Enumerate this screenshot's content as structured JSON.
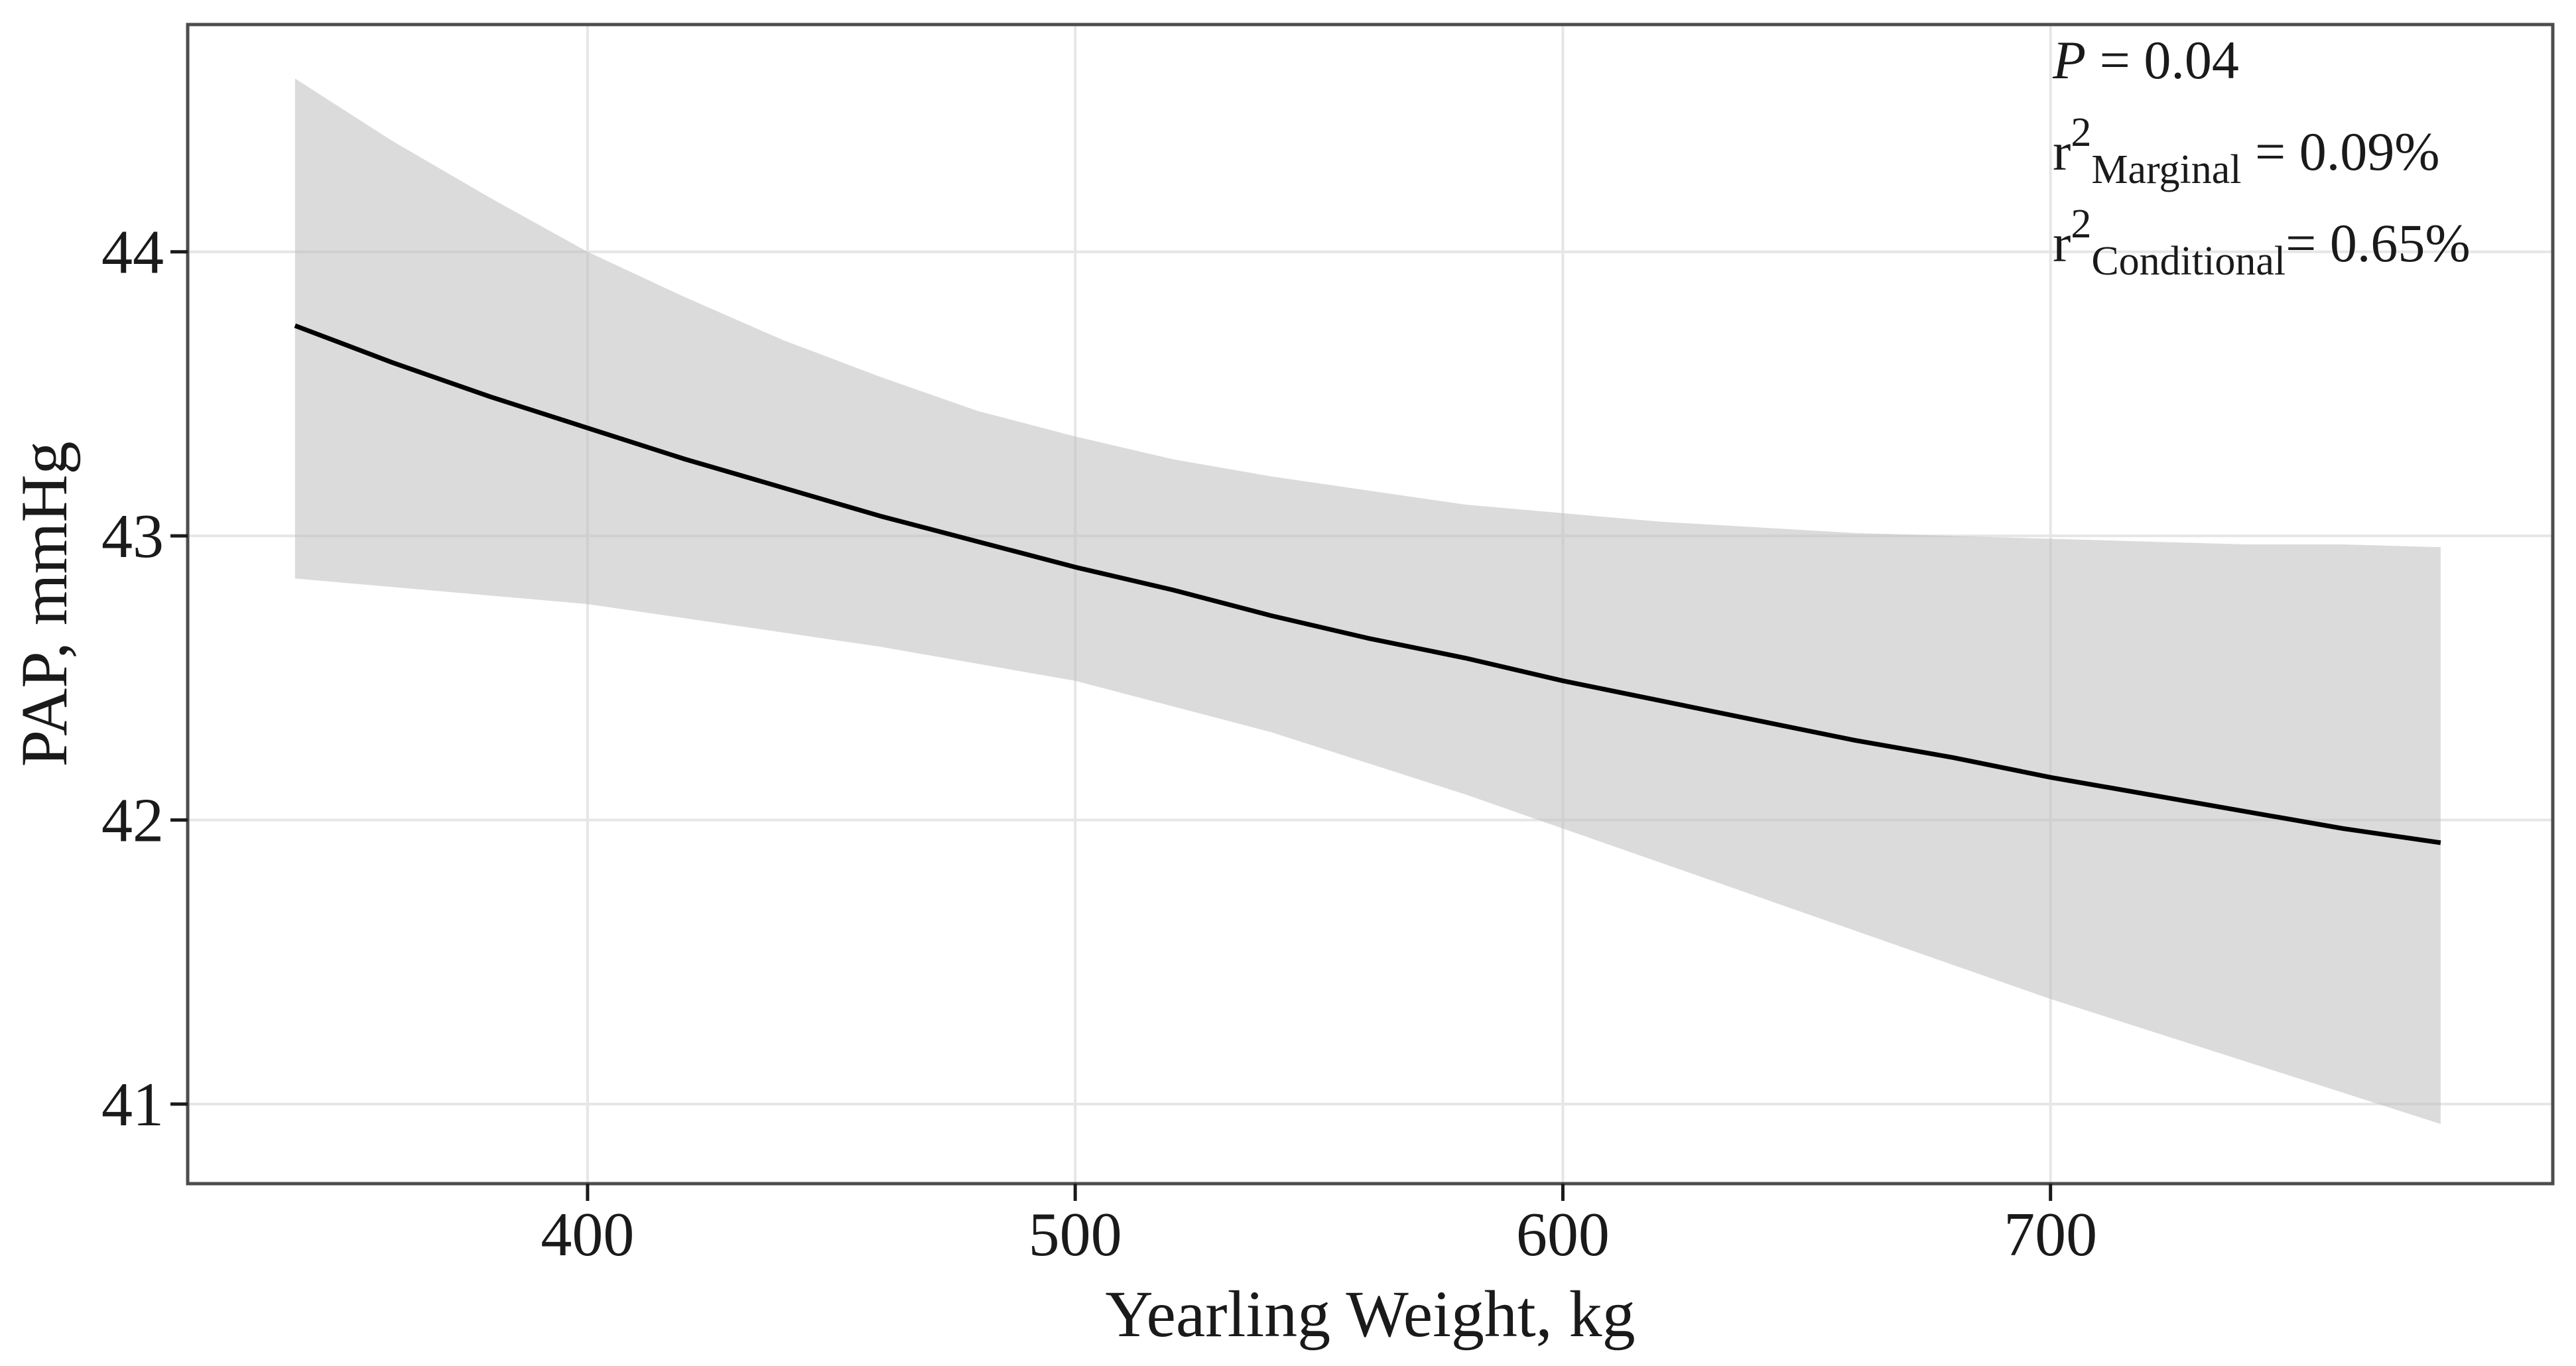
{
  "page": {
    "background": "#ffffff"
  },
  "chart_data": {
    "type": "line",
    "title": "",
    "xlabel": "Yearling Weight, kg",
    "ylabel": "PAP, mmHg",
    "xlim": [
      318,
      803
    ],
    "ylim": [
      40.72,
      44.8
    ],
    "x_ticks": [
      "400",
      "500",
      "600",
      "700"
    ],
    "y_ticks": [
      "41",
      "42",
      "43",
      "44"
    ],
    "grid": "major-only",
    "legend": "none",
    "annotation": {
      "p_line": {
        "symbol": "P",
        "rest": " = 0.04"
      },
      "r2_marginal": {
        "base": "r",
        "sup": "2",
        "sub": "Marginal",
        "rest": " = 0.09%"
      },
      "r2_conditional": {
        "base": "r",
        "sup": "2",
        "sub": "Conditional",
        "rest": "= 0.65%"
      }
    },
    "x": [
      340,
      360,
      380,
      400,
      420,
      440,
      460,
      480,
      500,
      520,
      540,
      560,
      580,
      600,
      620,
      640,
      660,
      680,
      700,
      720,
      740,
      760,
      780
    ],
    "series": [
      {
        "name": "fitted-line",
        "values": [
          43.74,
          43.61,
          43.49,
          43.38,
          43.27,
          43.17,
          43.07,
          42.98,
          42.89,
          42.81,
          42.72,
          42.64,
          42.57,
          42.49,
          42.42,
          42.35,
          42.28,
          42.22,
          42.15,
          42.09,
          42.03,
          41.97,
          41.92
        ]
      },
      {
        "name": "ci-upper",
        "values": [
          44.61,
          44.39,
          44.19,
          44.0,
          43.84,
          43.69,
          43.56,
          43.44,
          43.35,
          43.27,
          43.21,
          43.16,
          43.11,
          43.08,
          43.05,
          43.03,
          43.01,
          43.0,
          42.99,
          42.98,
          42.97,
          42.97,
          42.96
        ]
      },
      {
        "name": "ci-lower",
        "values": [
          42.85,
          42.82,
          42.79,
          42.76,
          42.71,
          42.66,
          42.61,
          42.55,
          42.49,
          42.4,
          42.31,
          42.2,
          42.09,
          41.97,
          41.85,
          41.73,
          41.61,
          41.49,
          41.37,
          41.26,
          41.15,
          41.04,
          40.93
        ]
      }
    ],
    "colors": {
      "line": "#000000",
      "ribbon": "rgba(190,190,190,0.55)",
      "grid": "#e6e6e6",
      "panel_border": "#4d4d4d",
      "tick": "#1a1a1a",
      "text": "#1a1a1a",
      "panel_bg": "#ffffff"
    }
  }
}
